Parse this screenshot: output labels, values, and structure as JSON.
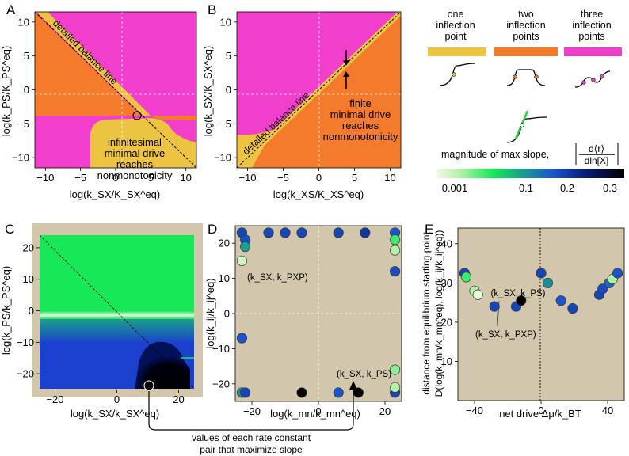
{
  "panels": {
    "A": {
      "letter": "A",
      "xlabel": "log(k_SX/K_SX^eq)",
      "ylabel": "log(k_PS/K_PS^eq)",
      "xticks": [
        -10,
        -5,
        0,
        5,
        10
      ],
      "yticks": [
        -10,
        -5,
        0,
        5,
        10
      ],
      "line_label": "detailed balance line",
      "region_label": [
        "infinitesimal",
        "minimal drive",
        "reaches",
        "nonmonotonicity"
      ]
    },
    "B": {
      "letter": "B",
      "xlabel": "log(k_XS/K_XS^eq)",
      "ylabel": "log(k_SX/K_SX^eq)",
      "xticks": [
        -10,
        -5,
        0,
        5,
        10
      ],
      "yticks": [
        -10,
        -5,
        0,
        5,
        10
      ],
      "line_label": "detailed balance line",
      "region_label": [
        "finite",
        "minimal drive",
        "reaches",
        "nonmonotonicity"
      ]
    },
    "C": {
      "letter": "C",
      "xlabel": "log(k_SX/k_SX^eq)",
      "ylabel": "log(k_PS/k_PS^eq)",
      "xticks": [
        -20,
        0,
        20
      ],
      "yticks": [
        -20,
        -10,
        0,
        10,
        20
      ]
    },
    "D": {
      "letter": "D",
      "xlabel": "log(k_mn/k_mn^eq)",
      "ylabel": "log(k_ij/k_ij^eq)",
      "xticks": [
        -20,
        0,
        20
      ],
      "yticks": [
        -20,
        -10,
        0,
        10,
        20
      ],
      "annot1": "(k_SX, k_PXP)",
      "annot2": "(k_SX, k_PS)"
    },
    "E": {
      "letter": "E",
      "xlabel": "net drive Δμ/k_BT",
      "ylabel_line1": "distance from equilibrium starting point",
      "ylabel_line2": "D(log(k_mn/k_mn^eq), log(k_ij/k_ij^eq))",
      "xticks": [
        -40,
        0,
        40
      ],
      "yticks": [
        10,
        20,
        30,
        40
      ],
      "annot1": "(k_SX, k_PS)",
      "annot2": "(k_SX, k_PXP)"
    }
  },
  "legend": {
    "one": [
      "one",
      "inflection",
      "point"
    ],
    "two": [
      "two",
      "inflection",
      "points"
    ],
    "three": [
      "three",
      "inflection",
      "points"
    ],
    "colors": {
      "one": "#ecc441",
      "two": "#f37b2b",
      "three": "#f23fcb"
    },
    "slope_label": "magnitude of max slope,",
    "slope_num": "d⟨r⟩",
    "slope_den": "dln[X]",
    "cbar_ticks": [
      "0.001",
      "0.1",
      "0.2",
      "0.3"
    ]
  },
  "bottom_caption": [
    "values of each rate constant",
    "pair that maximize slope"
  ],
  "chart_data": [
    {
      "panel": "A",
      "type": "heatmap",
      "xlim": [
        -11.5,
        11.5
      ],
      "ylim": [
        -11.5,
        11.5
      ],
      "regions": [
        {
          "name": "three inflection points",
          "color": "#f23fcb",
          "where": "upper right of detailed balance line and lower left"
        },
        {
          "name": "two inflection points",
          "color": "#f37b2b",
          "where": "between detailed balance line and y = -3"
        },
        {
          "name": "one inflection point",
          "color": "#ecc441",
          "where": "narrow band along y = -x and lower region x > 0, y < -3"
        }
      ],
      "detailed_balance_line": {
        "slope": -1,
        "intercept": 0
      },
      "circle_point": {
        "x": 3,
        "y": -3
      }
    },
    {
      "panel": "B",
      "type": "heatmap",
      "xlim": [
        -11.5,
        11.5
      ],
      "ylim": [
        -11.5,
        11.5
      ],
      "regions": [
        {
          "name": "three inflection points",
          "color": "#f23fcb",
          "where": "above y = x"
        },
        {
          "name": "two inflection points",
          "color": "#f37b2b",
          "where": "below y = x"
        },
        {
          "name": "one inflection point",
          "color": "#ecc441",
          "where": "band along y = x and lower-left corner"
        }
      ],
      "detailed_balance_line": {
        "slope": 1,
        "intercept": 0
      },
      "arrows_at_x": 3.5
    },
    {
      "panel": "C",
      "type": "heatmap",
      "xlim": [
        -25,
        25
      ],
      "ylim": [
        -25,
        25
      ],
      "colormap": [
        "#f1f8e4",
        "#17e857",
        "#1b54cc",
        "#000040",
        "#000000"
      ],
      "bands": [
        {
          "y_from": -2.6,
          "y_to": 23,
          "slope_value": 0.03
        },
        {
          "y_from": -4.0,
          "y_to": -2.6,
          "slope_value": 0.001
        },
        {
          "y_from": -23,
          "y_to": -4.0,
          "slope_value": 0.22
        }
      ],
      "max_point": {
        "x": 10,
        "y": -23
      }
    },
    {
      "panel": "D",
      "type": "scatter",
      "xlim": [
        -25,
        25
      ],
      "ylim": [
        -25,
        25
      ],
      "points": [
        {
          "x": -23,
          "y": 23,
          "v": 0.22
        },
        {
          "x": -15,
          "y": 23,
          "v": 0.22
        },
        {
          "x": -10,
          "y": 23,
          "v": 0.22
        },
        {
          "x": -5,
          "y": 23,
          "v": 0.22
        },
        {
          "x": 6,
          "y": 23,
          "v": 0.22
        },
        {
          "x": 14,
          "y": 23,
          "v": 0.24
        },
        {
          "x": 23,
          "y": 23,
          "v": 0.2
        },
        {
          "x": -22,
          "y": 21,
          "v": 0.21
        },
        {
          "x": -22,
          "y": 19,
          "v": 0.12
        },
        {
          "x": -23,
          "y": 15,
          "v": 0.01
        },
        {
          "x": 23,
          "y": 21,
          "v": 0.05
        },
        {
          "x": 23,
          "y": 18,
          "v": 0.02
        },
        {
          "x": 23,
          "y": 12,
          "v": 0.21
        },
        {
          "x": -23,
          "y": -7,
          "v": 0.2
        },
        {
          "x": -23,
          "y": -22.5,
          "v": 0.14
        },
        {
          "x": -22,
          "y": -22.5,
          "v": 0.22
        },
        {
          "x": -5,
          "y": -22.5,
          "v": 0.35
        },
        {
          "x": 6,
          "y": -22.5,
          "v": 0.2
        },
        {
          "x": 12,
          "y": -22.5,
          "v": 0.35
        },
        {
          "x": 23,
          "y": -22.5,
          "v": 0.22
        },
        {
          "x": 23,
          "y": -21,
          "v": 0.02
        },
        {
          "x": 23,
          "y": -16,
          "v": 0.03
        }
      ]
    },
    {
      "panel": "E",
      "type": "scatter",
      "xlim": [
        -50,
        50
      ],
      "ylim": [
        0,
        44
      ],
      "points": [
        {
          "x": -46,
          "y": 32.5,
          "v": 0.22
        },
        {
          "x": -45,
          "y": 31.5,
          "v": 0.05
        },
        {
          "x": -40,
          "y": 28,
          "v": 0.02
        },
        {
          "x": -38,
          "y": 27,
          "v": 0.004
        },
        {
          "x": -28,
          "y": 24,
          "v": 0.22
        },
        {
          "x": -15,
          "y": 24,
          "v": 0.22
        },
        {
          "x": -12,
          "y": 25.5,
          "v": 0.35
        },
        {
          "x": 0,
          "y": 32.5,
          "v": 0.22
        },
        {
          "x": 4,
          "y": 30,
          "v": 0.14
        },
        {
          "x": 12,
          "y": 25.5,
          "v": 0.2
        },
        {
          "x": 19,
          "y": 23.5,
          "v": 0.22
        },
        {
          "x": 35,
          "y": 27,
          "v": 0.22
        },
        {
          "x": 37,
          "y": 28.5,
          "v": 0.21
        },
        {
          "x": 41,
          "y": 30,
          "v": 0.18
        },
        {
          "x": 43,
          "y": 31,
          "v": 0.02
        },
        {
          "x": 46,
          "y": 32.5,
          "v": 0.2
        }
      ]
    }
  ]
}
